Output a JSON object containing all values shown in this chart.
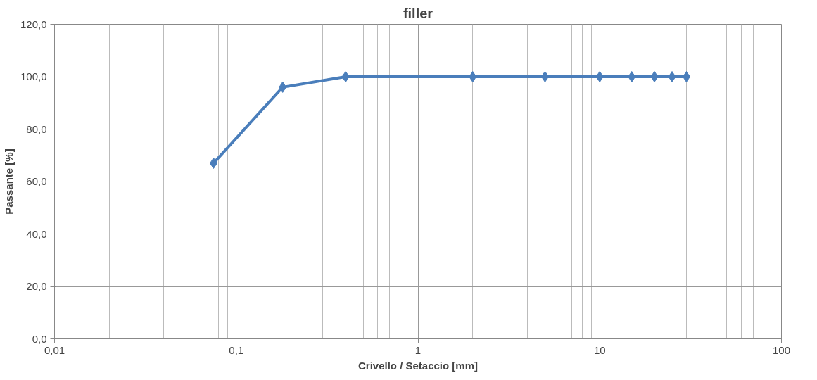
{
  "chart_data": {
    "type": "line",
    "title": "filler",
    "xlabel": "Crivello / Setaccio [mm]",
    "ylabel": "Passante [%]",
    "x": [
      0.075,
      0.18,
      0.4,
      2,
      5,
      10,
      15,
      20,
      25,
      30
    ],
    "series": [
      {
        "color": "#4a7ebb",
        "values": [
          67,
          96,
          100,
          100,
          100,
          100,
          100,
          100,
          100,
          100
        ]
      }
    ],
    "log": "x",
    "xlim": [
      0.01,
      100
    ],
    "xticks": [
      {
        "value": 0.01,
        "label": "0,01"
      },
      {
        "value": 0.1,
        "label": "0,1"
      },
      {
        "value": 1,
        "label": "1"
      },
      {
        "value": 10,
        "label": "10"
      },
      {
        "value": 100,
        "label": "100"
      }
    ],
    "ylim": [
      0,
      120
    ],
    "yticks": [
      {
        "value": 0,
        "label": "0,0"
      },
      {
        "value": 20,
        "label": "20,0"
      },
      {
        "value": 40,
        "label": "40,0"
      },
      {
        "value": 60,
        "label": "60,0"
      },
      {
        "value": 80,
        "label": "80,0"
      },
      {
        "value": 100,
        "label": "100,0"
      },
      {
        "value": 120,
        "label": "120,0"
      }
    ],
    "grid": true,
    "marker": "diamond",
    "line_style": "solid"
  }
}
